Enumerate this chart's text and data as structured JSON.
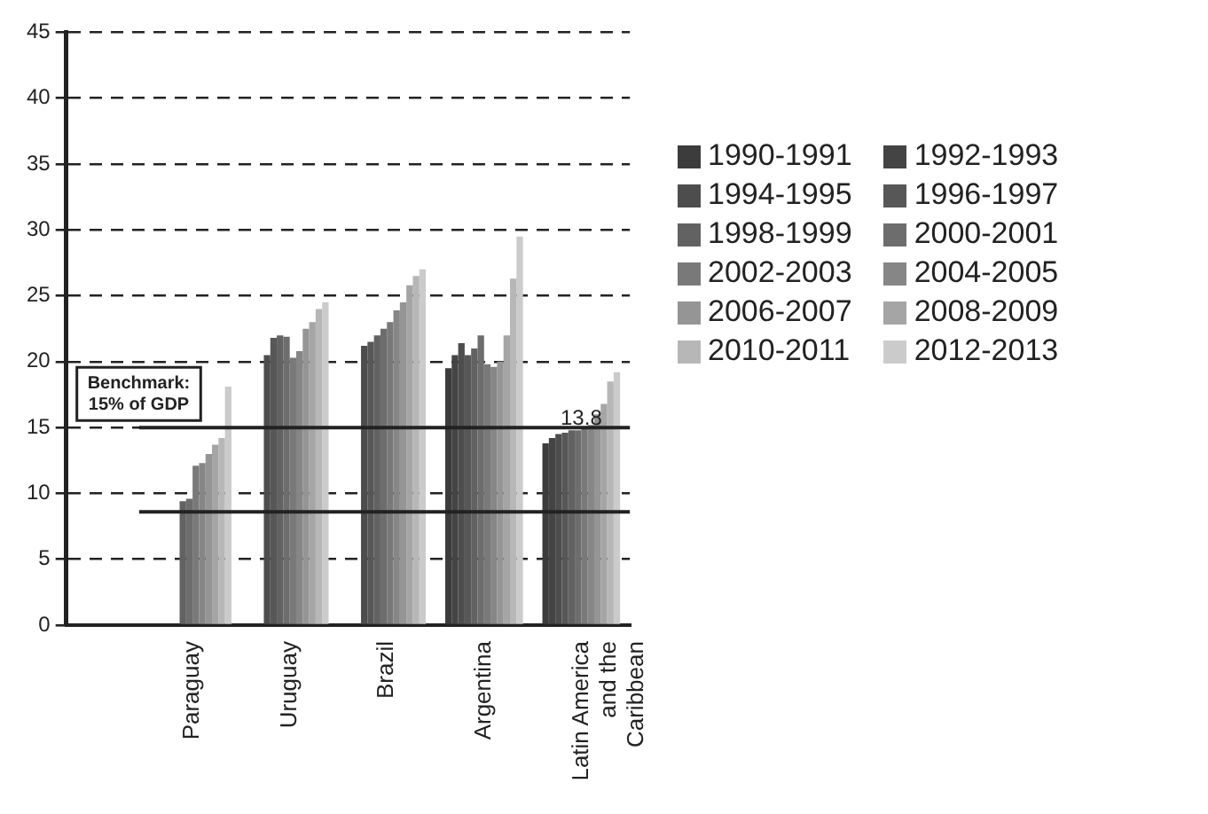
{
  "chart_data": {
    "type": "bar",
    "categories": [
      "Paraguay",
      "Uruguay",
      "Brazil",
      "Argentina",
      "Latin America and the Caribbean"
    ],
    "series": [
      {
        "name": "1990-1991",
        "color": "#3c3c3c",
        "values": [
          null,
          null,
          null,
          19.5,
          13.8
        ]
      },
      {
        "name": "1992-1993",
        "color": "#444444",
        "values": [
          null,
          null,
          null,
          20.5,
          14.2
        ]
      },
      {
        "name": "1994-1995",
        "color": "#4d4d4d",
        "values": [
          null,
          20.5,
          21.2,
          21.4,
          14.5
        ]
      },
      {
        "name": "1996-1997",
        "color": "#575757",
        "values": [
          null,
          21.8,
          21.5,
          20.5,
          14.6
        ]
      },
      {
        "name": "1998-1999",
        "color": "#626262",
        "values": [
          9.4,
          22.0,
          22.0,
          21.0,
          14.8
        ]
      },
      {
        "name": "2000-2001",
        "color": "#6d6d6d",
        "values": [
          9.6,
          21.9,
          22.5,
          22.0,
          14.8
        ]
      },
      {
        "name": "2002-2003",
        "color": "#797979",
        "values": [
          12.1,
          20.3,
          23.0,
          19.8,
          15.0
        ]
      },
      {
        "name": "2004-2005",
        "color": "#868686",
        "values": [
          12.3,
          20.8,
          23.9,
          19.6,
          15.2
        ]
      },
      {
        "name": "2006-2007",
        "color": "#959595",
        "values": [
          13.0,
          22.5,
          24.5,
          20.0,
          16.0
        ]
      },
      {
        "name": "2008-2009",
        "color": "#a5a5a5",
        "values": [
          13.7,
          23.0,
          25.8,
          22.0,
          16.8
        ]
      },
      {
        "name": "2010-2011",
        "color": "#b7b7b7",
        "values": [
          14.2,
          24.0,
          26.5,
          26.3,
          18.5
        ]
      },
      {
        "name": "2012-2013",
        "color": "#cbcbcb",
        "values": [
          18.1,
          24.5,
          27.0,
          29.5,
          19.2
        ]
      }
    ],
    "ylim": [
      0,
      45
    ],
    "yticks": [
      0,
      5,
      10,
      15,
      20,
      25,
      30,
      35,
      40,
      45
    ],
    "grid": "y",
    "legend": "right",
    "ref_lines": [
      {
        "axis": "y",
        "value": 15,
        "label": "Benchmark: 15% of GDP"
      },
      {
        "axis": "y",
        "value": 8.6
      }
    ],
    "annotations": [
      {
        "text": "13.8",
        "x": "Latin America and the Caribbean",
        "y": 13.8
      }
    ]
  }
}
